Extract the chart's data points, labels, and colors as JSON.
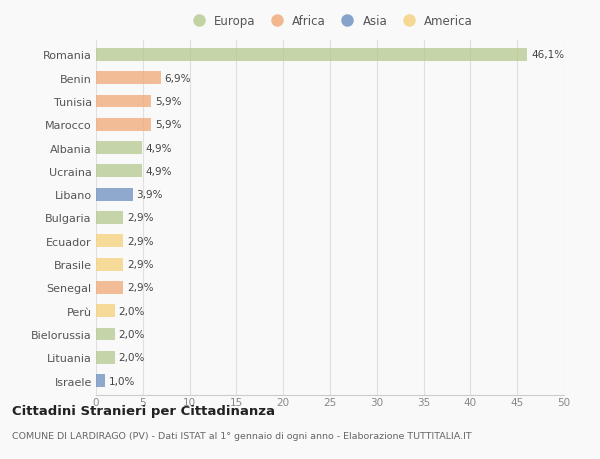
{
  "countries": [
    "Romania",
    "Benin",
    "Tunisia",
    "Marocco",
    "Albania",
    "Ucraina",
    "Libano",
    "Bulgaria",
    "Ecuador",
    "Brasile",
    "Senegal",
    "Perù",
    "Bielorussia",
    "Lituania",
    "Israele"
  ],
  "values": [
    46.1,
    6.9,
    5.9,
    5.9,
    4.9,
    4.9,
    3.9,
    2.9,
    2.9,
    2.9,
    2.9,
    2.0,
    2.0,
    2.0,
    1.0
  ],
  "labels": [
    "46,1%",
    "6,9%",
    "5,9%",
    "5,9%",
    "4,9%",
    "4,9%",
    "3,9%",
    "2,9%",
    "2,9%",
    "2,9%",
    "2,9%",
    "2,0%",
    "2,0%",
    "2,0%",
    "1,0%"
  ],
  "colors": [
    "#b5c98e",
    "#f0a875",
    "#f0a875",
    "#f0a875",
    "#b5c98e",
    "#b5c98e",
    "#6b8ebf",
    "#b5c98e",
    "#f5d07a",
    "#f5d07a",
    "#f0a875",
    "#f5d07a",
    "#b5c98e",
    "#b5c98e",
    "#6b8ebf"
  ],
  "legend_labels": [
    "Europa",
    "Africa",
    "Asia",
    "America"
  ],
  "legend_colors": [
    "#b5c98e",
    "#f0a875",
    "#6b8ebf",
    "#f5d07a"
  ],
  "xlim": [
    0,
    50
  ],
  "xticks": [
    0,
    5,
    10,
    15,
    20,
    25,
    30,
    35,
    40,
    45,
    50
  ],
  "title": "Cittadini Stranieri per Cittadinanza",
  "subtitle": "COMUNE DI LARDIRAGO (PV) - Dati ISTAT al 1° gennaio di ogni anno - Elaborazione TUTTITALIA.IT",
  "bg_color": "#f9f9f9",
  "grid_color": "#e8e8e8",
  "bar_height": 0.55
}
